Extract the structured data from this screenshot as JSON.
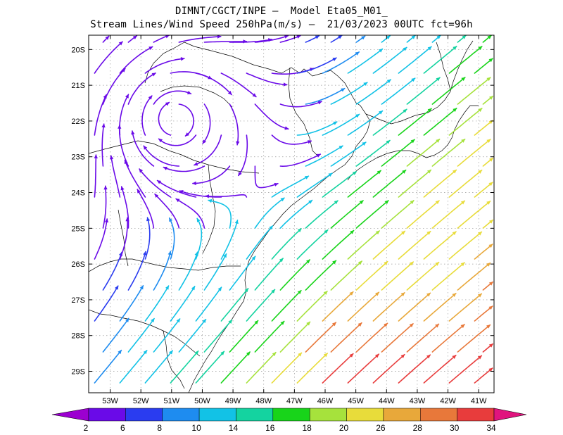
{
  "header": {
    "line1": "DIMNT/CGCT/INPE —  Model Eta05_M01_",
    "line2": "Stream Lines/Wind Speed 250hPa(m/s) —  21/03/2023 00UTC fct=96h"
  },
  "map": {
    "lon_range": [
      -53.7,
      -40.5
    ],
    "lat_range": [
      -29.6,
      -19.6
    ],
    "lat_labels": [
      "20S",
      "21S",
      "22S",
      "23S",
      "24S",
      "25S",
      "26S",
      "27S",
      "28S",
      "29S"
    ],
    "lon_labels": [
      "53W",
      "52W",
      "51W",
      "50W",
      "49W",
      "48W",
      "47W",
      "46W",
      "45W",
      "44W",
      "43W",
      "42W",
      "41W"
    ],
    "gridlines": "dotted",
    "coastline_color": "#000000"
  },
  "colorbar": {
    "labels": [
      "2",
      "6",
      "8",
      "10",
      "14",
      "16",
      "18",
      "20",
      "26",
      "28",
      "30",
      "34"
    ],
    "colors": [
      "#9c00d0",
      "#6a0ae8",
      "#2a3cf0",
      "#1e8cf0",
      "#12c2e6",
      "#14d3a0",
      "#18d41a",
      "#a6e23c",
      "#e8dc3a",
      "#e8a83a",
      "#e8783a",
      "#e83c3c",
      "#e0147e"
    ]
  }
}
